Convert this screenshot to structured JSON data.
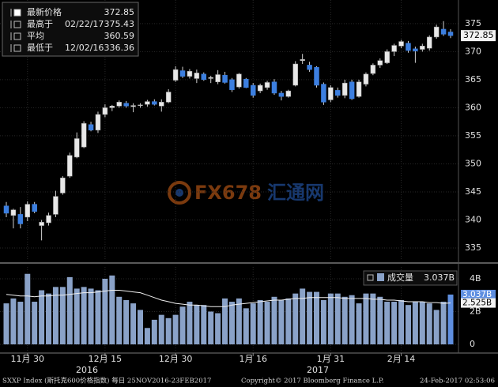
{
  "chart_data": [
    {
      "type": "candlestick",
      "categories": [
        null,
        null,
        null,
        "11月 30",
        null,
        null,
        null,
        null,
        null,
        null,
        null,
        null,
        null,
        null,
        "12月 15",
        null,
        null,
        null,
        null,
        null,
        null,
        null,
        null,
        null,
        "12月 30",
        null,
        null,
        null,
        null,
        null,
        null,
        null,
        null,
        null,
        null,
        "1月 16",
        null,
        null,
        null,
        null,
        null,
        null,
        null,
        null,
        null,
        null,
        "1月 31",
        null,
        null,
        null,
        null,
        null,
        null,
        null,
        null,
        null,
        "2月 14",
        null,
        null,
        null,
        null,
        null,
        null,
        null
      ],
      "x_years": [
        "2016",
        "2017"
      ],
      "open": [
        342.5,
        340.8,
        341,
        340.5,
        342.8,
        339,
        339.5,
        341,
        344.8,
        347.8,
        351.2,
        353,
        357,
        356,
        358.8,
        360,
        360.3,
        360.8,
        360.2,
        360.4,
        360.6,
        361.1,
        360.3,
        361,
        364.9,
        366.6,
        365.6,
        365.2,
        366,
        365.2,
        364.6,
        365.8,
        365,
        363.7,
        365.1,
        364,
        363,
        363.6,
        364.6,
        362.6,
        362,
        364,
        368.4,
        367.6,
        367.2,
        364.2,
        361.4,
        363.1,
        362.2,
        364.6,
        362,
        364.2,
        366.1,
        367.6,
        368,
        370,
        371,
        371.5,
        370.5,
        370.4,
        370.6,
        372.6,
        374,
        373.5
      ],
      "high": [
        343.2,
        342,
        342.3,
        343.3,
        343.2,
        340,
        341.3,
        345.2,
        347.8,
        352,
        355.6,
        357.6,
        357.5,
        359.3,
        360.6,
        360.5,
        361.3,
        361.2,
        360.8,
        360.8,
        361.4,
        361.5,
        361.5,
        363.3,
        367.4,
        367.3,
        366.9,
        366.8,
        366.3,
        365.7,
        366.7,
        366.4,
        365.3,
        366.2,
        365.3,
        364.4,
        364.3,
        364.8,
        365.1,
        363,
        363.2,
        368.3,
        369.6,
        368.2,
        367.4,
        364.5,
        364,
        363.6,
        365,
        365,
        365,
        366.3,
        367.9,
        368.8,
        370.4,
        371.4,
        372.1,
        371.9,
        370.9,
        371.4,
        372.9,
        374.8,
        375.43,
        374
      ],
      "low": [
        340.5,
        338.5,
        338.5,
        339.8,
        341.2,
        336.36,
        339,
        340.5,
        344.5,
        347.5,
        351,
        352.8,
        355.8,
        355.5,
        358.3,
        359.4,
        360,
        360,
        359.2,
        360,
        360.2,
        360.4,
        359.3,
        360.8,
        364.6,
        365.3,
        365.2,
        364.4,
        364.8,
        364.4,
        364.2,
        364.3,
        362.8,
        363.4,
        363.5,
        361.8,
        362.6,
        363.2,
        362.3,
        361.3,
        361.8,
        363.8,
        367.8,
        366.4,
        363.6,
        360.5,
        361,
        361.8,
        361.7,
        361.4,
        361.8,
        363.8,
        365.8,
        367.1,
        367.8,
        369.2,
        370.6,
        369.8,
        368,
        370,
        370.2,
        372.3,
        372.8,
        372.4
      ],
      "close": [
        341.2,
        341.8,
        339.3,
        342.8,
        341.5,
        339.6,
        340.8,
        344.2,
        347.5,
        351.5,
        354.5,
        357.2,
        356,
        358.8,
        360,
        360.3,
        361,
        360.3,
        360.4,
        360.5,
        361.1,
        360.6,
        361,
        362.8,
        366.8,
        365.6,
        366.5,
        366.2,
        365,
        365.4,
        365.9,
        364.5,
        363.2,
        366,
        363.6,
        362.2,
        364,
        364.5,
        362.6,
        362,
        363,
        367.8,
        368.6,
        366.8,
        364,
        361,
        363.6,
        362.2,
        364.4,
        361.6,
        364.6,
        366,
        367.6,
        368.4,
        370,
        371.1,
        371.8,
        370.2,
        370.1,
        371,
        372.6,
        374.4,
        373.1,
        372.85
      ],
      "up_color": "#e8e8e8",
      "down_color": "#3c7fe0",
      "ylim": [
        332.75,
        379.2
      ],
      "yticks": [
        335,
        340,
        345,
        350,
        355,
        360,
        365,
        370,
        375
      ],
      "grid": true,
      "legend": [
        {
          "label": "最新价格",
          "value": 372.85
        },
        {
          "label": "最高于",
          "date": "02/22/17",
          "value": 375.43
        },
        {
          "label": "平均",
          "value": 360.59
        },
        {
          "label": "最低于",
          "date": "12/02/16",
          "value": 336.36
        }
      ]
    },
    {
      "type": "bar",
      "series": [
        {
          "name": "成交量",
          "type": "bar",
          "color": "#8aa2c8",
          "values": [
            2.5,
            2.8,
            2.6,
            4.3,
            2.6,
            3.3,
            3.1,
            3.5,
            3.5,
            4.1,
            3.4,
            3.5,
            3.4,
            3.3,
            4.0,
            4.2,
            2.9,
            2.7,
            2.5,
            2.1,
            1.0,
            1.5,
            1.8,
            1.6,
            1.8,
            2.3,
            2.6,
            2.4,
            2.4,
            2.0,
            1.9,
            2.8,
            2.6,
            2.8,
            2.2,
            2.5,
            2.7,
            2.6,
            2.9,
            2.7,
            2.8,
            3.1,
            3.4,
            3.2,
            3.2,
            2.7,
            3.1,
            3.1,
            2.9,
            3.0,
            2.5,
            3.1,
            3.1,
            2.9,
            2.6,
            2.6,
            2.7,
            2.4,
            2.6,
            2.6,
            2.5,
            2.1,
            2.6,
            3.037
          ],
          "last": {
            "value": 3.037,
            "label": "3.037B"
          }
        },
        {
          "type": "line",
          "color": "#f0f0f0",
          "values": [
            3.05,
            3.0,
            2.95,
            2.95,
            2.9,
            2.95,
            2.95,
            3.0,
            3.0,
            3.05,
            3.1,
            3.15,
            3.15,
            3.2,
            3.25,
            3.3,
            3.3,
            3.25,
            3.2,
            3.15,
            3.0,
            2.85,
            2.7,
            2.6,
            2.5,
            2.45,
            2.4,
            2.4,
            2.35,
            2.3,
            2.3,
            2.3,
            2.4,
            2.45,
            2.5,
            2.55,
            2.6,
            2.65,
            2.7,
            2.7,
            2.75,
            2.8,
            2.8,
            2.85,
            2.85,
            2.85,
            2.85,
            2.85,
            2.8,
            2.8,
            2.8,
            2.8,
            2.75,
            2.75,
            2.7,
            2.7,
            2.65,
            2.6,
            2.6,
            2.6,
            2.55,
            2.55,
            2.5,
            2.525
          ],
          "last": {
            "value": 2.525,
            "label": "2.525B"
          }
        }
      ],
      "ylim": [
        -0.48,
        4.72
      ],
      "yticks": [
        {
          "value": 4,
          "label": "4B"
        },
        {
          "value": 2,
          "label": "2B"
        },
        0
      ],
      "grid": true
    }
  ],
  "watermark": {
    "brand": "FX678",
    "name": "汇通网"
  },
  "footer": {
    "left": "SXXP Index (斯托克600价格指数) 每日 25NOV2016-23FEB2017",
    "copyright": "Copyright© 2017 Bloomberg Finance L.P.",
    "timestamp": "24-Feb-2017 02:53:06"
  }
}
